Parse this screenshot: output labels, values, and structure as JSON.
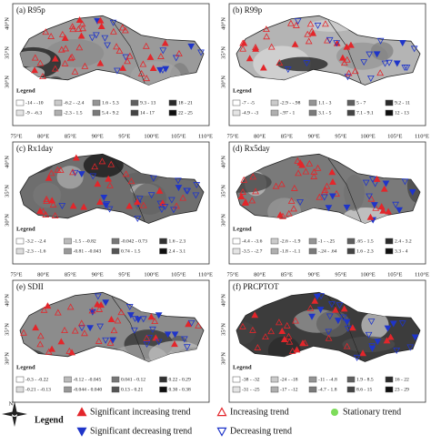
{
  "panels": [
    {
      "label": "(a) R95p",
      "legend_title": "Legend",
      "legend_items": [
        "-14 - -10",
        "-9 - -6.3",
        "-6.2 - -2.4",
        "-2.3 - 1.5",
        "1.6 - 5.3",
        "5.4 - 9.2",
        "9.3 - 13",
        "14 - 17",
        "18 - 21",
        "22 - 25"
      ]
    },
    {
      "label": "(b) R99p",
      "legend_title": "Legend",
      "legend_items": [
        "-7 - -5",
        "-4.9 - -3",
        "-2.9 - -.98",
        "-.97 - 1",
        "1.1 - 3",
        "3.1 - 5",
        "5 - 7",
        "7.1 - 9.1",
        "9.2 - 11",
        "12 - 13"
      ]
    },
    {
      "label": "(c) Rx1day",
      "legend_title": "Legend",
      "legend_items": [
        "-3.2 - -2.4",
        "-2.3 - -1.6",
        "-1.5 - -0.82",
        "-0.81 - -0.043",
        "-0.042 - 0.73",
        "0.74 - 1.5",
        "1.6 - 2.3",
        "2.4 - 3.1"
      ]
    },
    {
      "label": "(d) Rx5day",
      "legend_title": "Legend",
      "legend_items": [
        "-4.4 - -3.6",
        "-3.5 - -2.7",
        "-2.6 - -1.9",
        "-1.8 - -1.1",
        "-1 - -.25",
        "-.24 - .64",
        ".65 - 1.5",
        "1.6 - 2.3",
        "2.4 - 3.2",
        "3.3 - 4"
      ]
    },
    {
      "label": "(e) SDII",
      "legend_title": "Legend",
      "legend_items": [
        "-0.3 - -0.22",
        "-0.21 - -0.13",
        "-0.12 - -0.045",
        "-0.044 - 0.040",
        "0.041 - 0.12",
        "0.13 - 0.21",
        "0.22 - 0.29",
        "0.30 - 0.38"
      ]
    },
    {
      "label": "(f) PRCPTOT",
      "legend_title": "Legend",
      "legend_items": [
        "-38 - -32",
        "-31 - -25",
        "-24 - -18",
        "-17 - -12",
        "-11 - -4.8",
        "-4.7 - 1.8",
        "1.9 - 8.5",
        "8.6 - 15",
        "16 - 22",
        "23 - 29"
      ]
    }
  ],
  "lon_labels": [
    "75°E",
    "80°E",
    "85°E",
    "90°E",
    "95°E",
    "100°E",
    "105°E",
    "110°E"
  ],
  "lat_labels": [
    "40°N",
    "35°N",
    "30°N"
  ],
  "key": {
    "north": "N",
    "title": "Legend",
    "items": [
      "Significant increasing trend",
      "Increasing trend",
      "Stationary trend",
      "Significant decreasing trend",
      "Decreasing trend"
    ]
  }
}
